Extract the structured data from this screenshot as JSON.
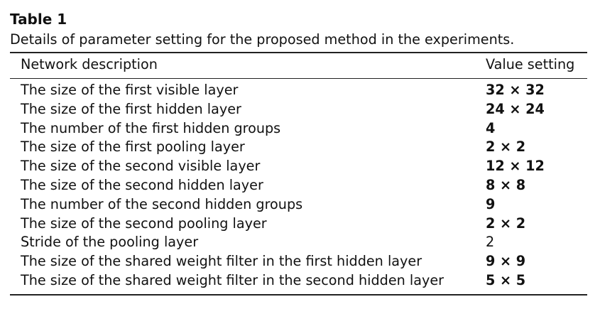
{
  "table": {
    "label": "Table 1",
    "caption": "Details of parameter setting for the proposed method in the experiments.",
    "headers": {
      "description": "Network description",
      "value": "Value setting"
    },
    "rows": [
      {
        "description": "The size of the first visible layer",
        "value": "32 × 32",
        "bold": true
      },
      {
        "description": "The size of the first hidden layer",
        "value": "24 × 24",
        "bold": true
      },
      {
        "description": "The number of the first hidden groups",
        "value": "4",
        "bold": true
      },
      {
        "description": "The size of the first pooling layer",
        "value": "2 × 2",
        "bold": true
      },
      {
        "description": "The size of the second visible layer",
        "value": "12 × 12",
        "bold": true
      },
      {
        "description": "The size of the second hidden layer",
        "value": "8 × 8",
        "bold": true
      },
      {
        "description": "The number of the second hidden groups",
        "value": "9",
        "bold": true
      },
      {
        "description": "The size of the second pooling layer",
        "value": "2 × 2",
        "bold": true
      },
      {
        "description": "Stride of the pooling layer",
        "value": "2",
        "bold": false
      },
      {
        "description": "The size of the shared weight filter in the first hidden layer",
        "value": "9 × 9",
        "bold": true
      },
      {
        "description": "The size of the shared weight filter in the second hidden layer",
        "value": "5 × 5",
        "bold": true
      }
    ]
  }
}
